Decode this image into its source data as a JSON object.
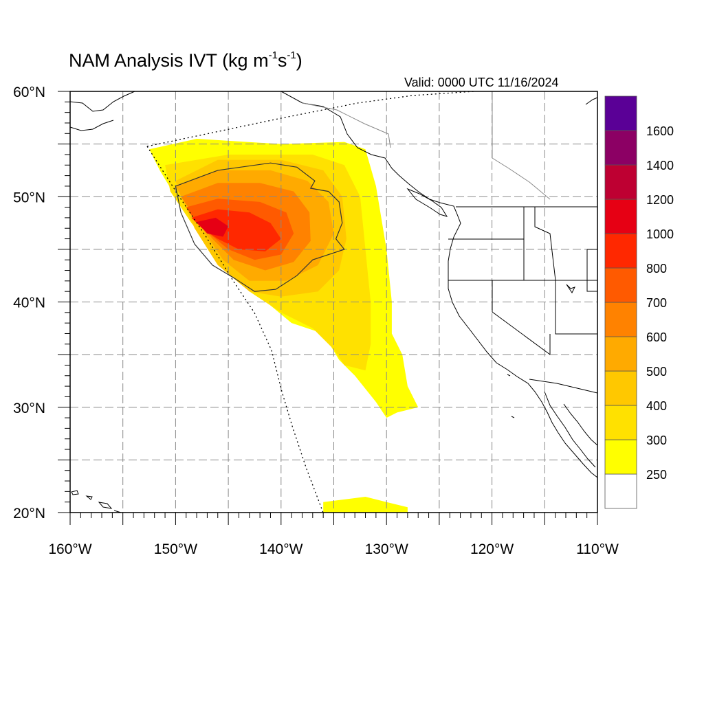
{
  "title": {
    "main": "NAM Analysis IVT (kg m",
    "exp1": "-1",
    "mid": "s",
    "exp2": "-1",
    "close": ")"
  },
  "valid_text": "Valid: 0000 UTC 11/16/2024",
  "axes": {
    "lon_ticks": [
      {
        "value": -160,
        "label": "160°W"
      },
      {
        "value": -150,
        "label": "150°W"
      },
      {
        "value": -140,
        "label": "140°W"
      },
      {
        "value": -130,
        "label": "130°W"
      },
      {
        "value": -120,
        "label": "120°W"
      },
      {
        "value": -110,
        "label": "110°W"
      }
    ],
    "lat_ticks": [
      {
        "value": 20,
        "label": "20°N"
      },
      {
        "value": 30,
        "label": "30°N"
      },
      {
        "value": 40,
        "label": "40°N"
      },
      {
        "value": 50,
        "label": "50°N"
      },
      {
        "value": 60,
        "label": "60°N"
      }
    ],
    "lon_range": [
      -160,
      -110
    ],
    "lat_range": [
      20,
      60
    ],
    "grid": "dashed every 5 degrees"
  },
  "colorbar": {
    "levels": [
      250,
      300,
      400,
      500,
      600,
      700,
      800,
      1000,
      1200,
      1400,
      1600
    ],
    "labels": [
      "250",
      "300",
      "400",
      "500",
      "600",
      "700",
      "800",
      "1000",
      "1200",
      "1400",
      "1600"
    ],
    "colors": [
      "#ffffff",
      "#ffff00",
      "#ffe100",
      "#ffc800",
      "#ffaa00",
      "#ff8200",
      "#ff5a00",
      "#ff2800",
      "#e60014",
      "#be0032",
      "#8c0064",
      "#5a0096"
    ]
  },
  "colors": {
    "ivt_250": "#ffff00",
    "ivt_300": "#ffe100",
    "ivt_400": "#ffc800",
    "ivt_500": "#ffaa00",
    "ivt_600": "#ff8200",
    "ivt_700": "#ff5a00",
    "ivt_800": "#ff2800",
    "ivt_1000": "#e60014"
  },
  "chart_data": {
    "type": "heatmap",
    "title": "NAM Analysis IVT (kg m-1s-1)",
    "subtitle": "Valid: 0000 UTC 11/16/2024",
    "x": "longitude",
    "y": "latitude",
    "xlim": [
      -160,
      -110
    ],
    "ylim": [
      20,
      60
    ],
    "features": [
      {
        "level": 250,
        "region": [
          [
            -152.5,
            54.5
          ],
          [
            -148,
            55.5
          ],
          [
            -140,
            55
          ],
          [
            -134,
            55.2
          ],
          [
            -132,
            54.5
          ],
          [
            -131,
            51
          ],
          [
            -130,
            45
          ],
          [
            -129.5,
            40
          ],
          [
            -129.5,
            37
          ],
          [
            -128.5,
            35
          ],
          [
            -128,
            32
          ],
          [
            -127,
            30
          ],
          [
            -129,
            29.5
          ],
          [
            -130,
            29
          ],
          [
            -131,
            30.5
          ],
          [
            -133,
            33
          ],
          [
            -134.5,
            34.5
          ],
          [
            -136,
            37
          ],
          [
            -139,
            38
          ],
          [
            -142,
            40.5
          ],
          [
            -145,
            44
          ],
          [
            -148,
            47
          ],
          [
            -150,
            50
          ],
          [
            -151.5,
            52.5
          ]
        ]
      },
      {
        "level": 250,
        "region": [
          [
            -136,
            20
          ],
          [
            -136,
            21
          ],
          [
            -132,
            21.5
          ],
          [
            -130,
            21
          ],
          [
            -128,
            20.5
          ],
          [
            -128,
            20
          ]
        ]
      },
      {
        "level": 300,
        "region": [
          [
            -151,
            53
          ],
          [
            -145,
            54
          ],
          [
            -137,
            54
          ],
          [
            -134,
            53
          ],
          [
            -132.5,
            50
          ],
          [
            -132,
            45
          ],
          [
            -131.5,
            40
          ],
          [
            -131.5,
            36
          ],
          [
            -132,
            33.5
          ],
          [
            -134,
            34
          ],
          [
            -135,
            35.5
          ],
          [
            -137,
            37.5
          ],
          [
            -140,
            39
          ],
          [
            -143,
            41
          ],
          [
            -146,
            44.5
          ],
          [
            -148.5,
            47.5
          ],
          [
            -150.5,
            50.5
          ]
        ]
      },
      {
        "level": 400,
        "region": [
          [
            -150,
            51.5
          ],
          [
            -146,
            53.5
          ],
          [
            -140,
            53.5
          ],
          [
            -136,
            52.5
          ],
          [
            -134.2,
            50
          ],
          [
            -133.8,
            46
          ],
          [
            -134.5,
            43
          ],
          [
            -136.5,
            41
          ],
          [
            -140,
            40.5
          ],
          [
            -143,
            41
          ],
          [
            -146,
            43.5
          ],
          [
            -148.2,
            47
          ],
          [
            -149.5,
            50
          ]
        ]
      },
      {
        "level": 500,
        "region": [
          [
            -150,
            51
          ],
          [
            -146,
            52.5
          ],
          [
            -141,
            52.5
          ],
          [
            -137.5,
            51.5
          ],
          [
            -135.5,
            49.5
          ],
          [
            -135,
            46.5
          ],
          [
            -136.5,
            43.5
          ],
          [
            -139.5,
            42
          ],
          [
            -143,
            42
          ],
          [
            -145.5,
            44
          ],
          [
            -147.5,
            47
          ],
          [
            -149.2,
            49.5
          ]
        ]
      },
      {
        "level": 600,
        "region": [
          [
            -149.5,
            50
          ],
          [
            -146,
            51.3
          ],
          [
            -142,
            51.3
          ],
          [
            -138.8,
            50.5
          ],
          [
            -137.3,
            48.5
          ],
          [
            -137.2,
            45.8
          ],
          [
            -138.8,
            43.8
          ],
          [
            -141.5,
            43
          ],
          [
            -144.5,
            44
          ],
          [
            -146.5,
            46
          ],
          [
            -148.3,
            48.3
          ]
        ]
      },
      {
        "level": 700,
        "region": [
          [
            -149,
            49
          ],
          [
            -146,
            49.8
          ],
          [
            -142,
            49.5
          ],
          [
            -139.5,
            48.5
          ],
          [
            -138.8,
            46.5
          ],
          [
            -140,
            44.5
          ],
          [
            -142.5,
            44
          ],
          [
            -145,
            45
          ],
          [
            -146.8,
            46.5
          ],
          [
            -148.2,
            47.8
          ]
        ]
      },
      {
        "level": 800,
        "region": [
          [
            -148.5,
            48
          ],
          [
            -146,
            48.8
          ],
          [
            -143,
            48.5
          ],
          [
            -141,
            47.5
          ],
          [
            -140,
            46
          ],
          [
            -141.5,
            44.8
          ],
          [
            -144,
            45
          ],
          [
            -146,
            46
          ],
          [
            -147.5,
            47
          ]
        ]
      },
      {
        "level": 1000,
        "region": [
          [
            -148,
            47.6
          ],
          [
            -146.2,
            48
          ],
          [
            -145,
            47.2
          ],
          [
            -145.5,
            46.2
          ],
          [
            -147,
            46.5
          ]
        ]
      }
    ],
    "contour_1000": [
      [
        -150,
        51
      ],
      [
        -146,
        52.5
      ],
      [
        -141,
        53.2
      ],
      [
        -138.5,
        52.8
      ],
      [
        -136.8,
        51.5
      ],
      [
        -137.2,
        50.8
      ],
      [
        -135.5,
        50.5
      ],
      [
        -134.5,
        49.5
      ],
      [
        -134.2,
        47.5
      ],
      [
        -134.8,
        46
      ],
      [
        -134,
        45
      ],
      [
        -137,
        44
      ],
      [
        -138.5,
        42.5
      ],
      [
        -140.5,
        41.2
      ],
      [
        -142.5,
        41
      ],
      [
        -144.5,
        42.3
      ],
      [
        -146.5,
        43.5
      ],
      [
        -148.2,
        45.5
      ],
      [
        -149.5,
        48.5
      ]
    ]
  }
}
